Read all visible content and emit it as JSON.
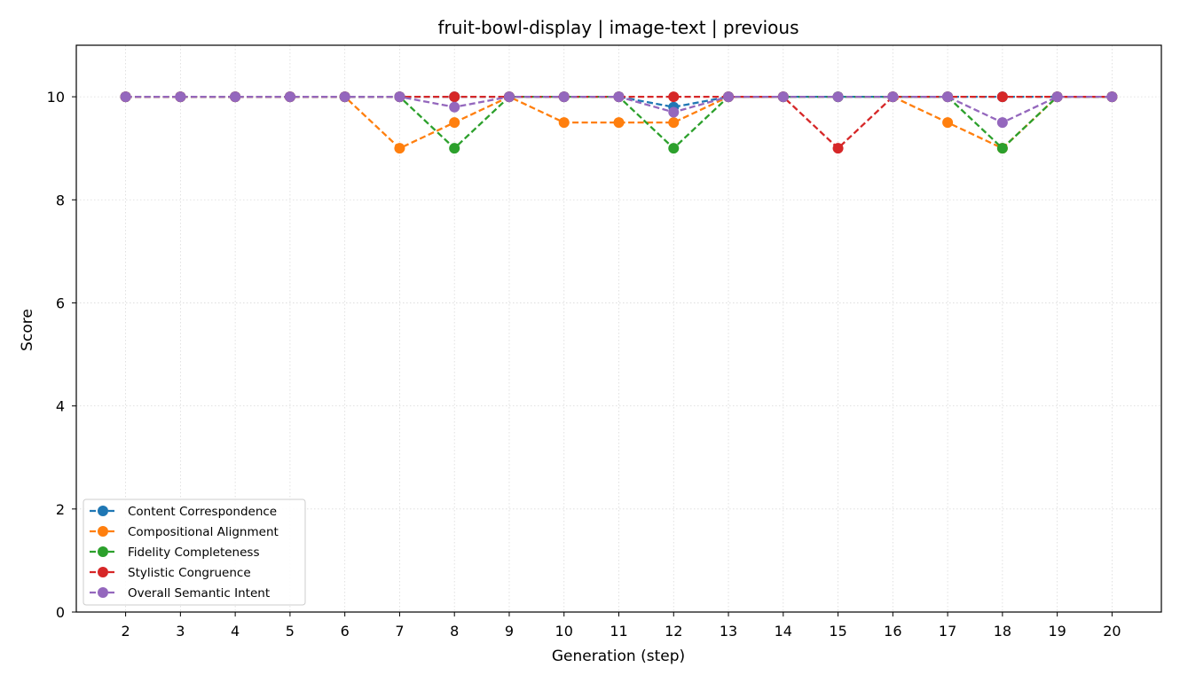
{
  "chart_data": {
    "type": "line",
    "title": "fruit-bowl-display | image-text | previous",
    "xlabel": "Generation (step)",
    "ylabel": "Score",
    "x": [
      2,
      3,
      4,
      5,
      6,
      7,
      8,
      9,
      10,
      11,
      12,
      13,
      14,
      15,
      16,
      17,
      18,
      19,
      20
    ],
    "xlim": [
      1.1,
      20.9
    ],
    "ylim": [
      0,
      11
    ],
    "yticks": [
      0,
      2,
      4,
      6,
      8,
      10
    ],
    "grid": true,
    "legend_position": "lower-left",
    "series": [
      {
        "name": "Content Correspondence",
        "color": "#1f77b4",
        "values": [
          10,
          10,
          10,
          10,
          10,
          10,
          10,
          10,
          10,
          10,
          9.8,
          10,
          10,
          10,
          10,
          10,
          10,
          10,
          10
        ]
      },
      {
        "name": "Compositional Alignment",
        "color": "#ff7f0e",
        "values": [
          10,
          10,
          10,
          10,
          10,
          9,
          9.5,
          10,
          9.5,
          9.5,
          9.5,
          10,
          10,
          10,
          10,
          9.5,
          9,
          10,
          10
        ]
      },
      {
        "name": "Fidelity Completeness",
        "color": "#2ca02c",
        "values": [
          10,
          10,
          10,
          10,
          10,
          10,
          9,
          10,
          10,
          10,
          9,
          10,
          10,
          10,
          10,
          10,
          9,
          10,
          10
        ]
      },
      {
        "name": "Stylistic Congruence",
        "color": "#d62728",
        "values": [
          10,
          10,
          10,
          10,
          10,
          10,
          10,
          10,
          10,
          10,
          10,
          10,
          10,
          9,
          10,
          10,
          10,
          10,
          10
        ]
      },
      {
        "name": "Overall Semantic Intent",
        "color": "#9467bd",
        "values": [
          10,
          10,
          10,
          10,
          10,
          10,
          9.8,
          10,
          10,
          10,
          9.7,
          10,
          10,
          10,
          10,
          10,
          9.5,
          10,
          10
        ]
      }
    ]
  }
}
